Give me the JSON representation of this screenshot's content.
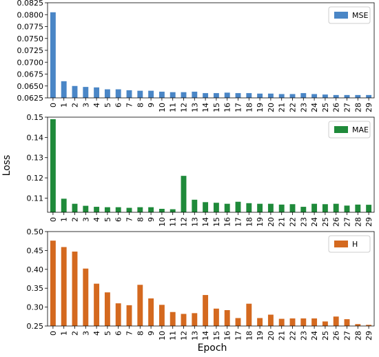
{
  "chart_data": {
    "type": "bar",
    "ylabel": "Loss",
    "xlabel": "Epoch",
    "categories": [
      "0",
      "1",
      "2",
      "3",
      "4",
      "5",
      "6",
      "7",
      "8",
      "9",
      "10",
      "11",
      "12",
      "13",
      "14",
      "15",
      "16",
      "17",
      "18",
      "19",
      "20",
      "21",
      "22",
      "23",
      "24",
      "25",
      "26",
      "27",
      "28",
      "29"
    ],
    "panels": [
      {
        "name": "MSE",
        "color": "#4a86c6",
        "legend_position": "top-right",
        "ylim": [
          0.0625,
          0.0825
        ],
        "yticks": [
          0.0625,
          0.065,
          0.0675,
          0.07,
          0.0725,
          0.075,
          0.0775,
          0.08,
          0.0825
        ],
        "ytick_labels": [
          "0.0625",
          "0.0650",
          "0.0675",
          "0.0700",
          "0.0725",
          "0.0750",
          "0.0775",
          "0.0800",
          "0.0825"
        ],
        "values": [
          0.0805,
          0.066,
          0.065,
          0.0648,
          0.0647,
          0.0643,
          0.0643,
          0.0641,
          0.064,
          0.064,
          0.0638,
          0.0637,
          0.0637,
          0.0638,
          0.0635,
          0.0635,
          0.0636,
          0.0635,
          0.0635,
          0.0634,
          0.0634,
          0.0633,
          0.0633,
          0.0635,
          0.0633,
          0.0632,
          0.0631,
          0.0631,
          0.0631,
          0.0631
        ]
      },
      {
        "name": "MAE",
        "color": "#1f8a3a",
        "legend_position": "top-right",
        "ylim": [
          0.103,
          0.15
        ],
        "yticks": [
          0.11,
          0.12,
          0.13,
          0.14,
          0.15
        ],
        "ytick_labels": [
          "0.11",
          "0.12",
          "0.13",
          "0.14",
          "0.15"
        ],
        "values": [
          0.149,
          0.1097,
          0.1072,
          0.1062,
          0.1057,
          0.1055,
          0.1055,
          0.1052,
          0.1055,
          0.1055,
          0.1047,
          0.1045,
          0.121,
          0.1092,
          0.108,
          0.1077,
          0.1072,
          0.1082,
          0.1075,
          0.1072,
          0.1072,
          0.1068,
          0.107,
          0.1057,
          0.1072,
          0.107,
          0.1072,
          0.1063,
          0.1068,
          0.1067
        ]
      },
      {
        "name": "H",
        "color": "#d4691f",
        "legend_position": "top-right",
        "ylim": [
          0.25,
          0.5
        ],
        "yticks": [
          0.25,
          0.3,
          0.35,
          0.4,
          0.45,
          0.5
        ],
        "ytick_labels": [
          "0.25",
          "0.30",
          "0.35",
          "0.40",
          "0.45",
          "0.50"
        ],
        "values": [
          0.476,
          0.459,
          0.447,
          0.402,
          0.362,
          0.339,
          0.31,
          0.305,
          0.359,
          0.323,
          0.306,
          0.287,
          0.282,
          0.284,
          0.332,
          0.296,
          0.292,
          0.271,
          0.309,
          0.271,
          0.28,
          0.269,
          0.27,
          0.27,
          0.27,
          0.262,
          0.275,
          0.268,
          0.255,
          0.253
        ]
      }
    ]
  }
}
